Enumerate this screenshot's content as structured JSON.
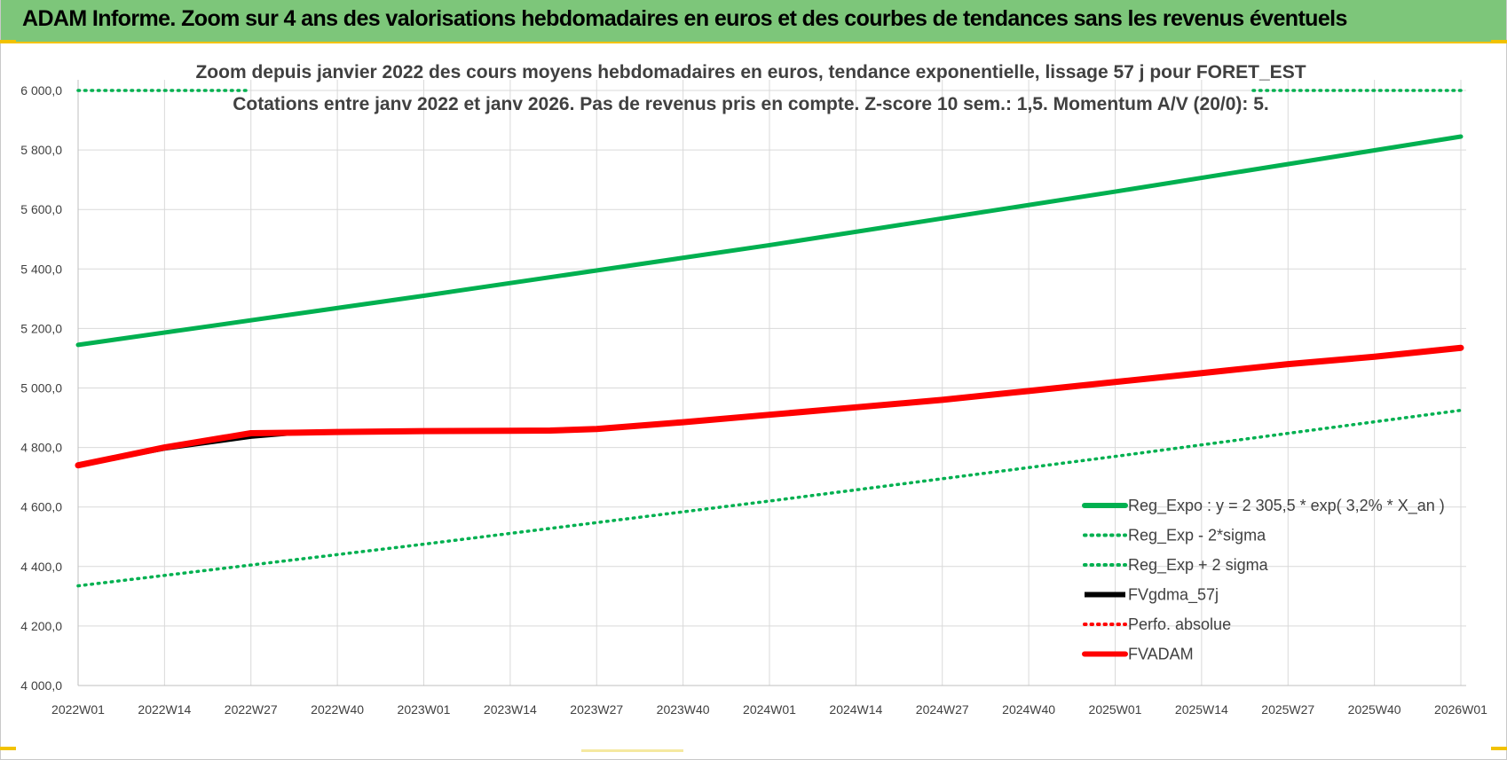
{
  "page": {
    "banner_title": "ADAM Informe. Zoom sur 4 ans des valorisations hebdomadaires en euros et des courbes de tendances sans les revenus éventuels",
    "banner_color": "#7dc67a",
    "accent_color": "#f2c200"
  },
  "chart_data": {
    "type": "line",
    "title": "Zoom depuis janvier 2022 des cours moyens hebdomadaires en euros, tendance exponentielle, lissage 57 j pour FORET_EST",
    "subtitle": "Cotations entre janv 2022 et janv 2026. Pas de revenus pris en compte. Z-score 10 sem.: 1,5. Momentum A/V (20/0): 5.",
    "xlabel": "",
    "ylabel": "",
    "ylim": [
      4000,
      6000
    ],
    "y_ticks": [
      "4 000,0",
      "4 200,0",
      "4 400,0",
      "4 600,0",
      "4 800,0",
      "5 000,0",
      "5 200,0",
      "5 400,0",
      "5 600,0",
      "5 800,0",
      "6 000,0"
    ],
    "x_ticks": [
      "2022W01",
      "2022W14",
      "2022W27",
      "2022W40",
      "2023W01",
      "2023W14",
      "2023W27",
      "2023W40",
      "2024W01",
      "2024W14",
      "2024W27",
      "2024W40",
      "2025W01",
      "2025W14",
      "2025W27",
      "2025W40",
      "2026W01"
    ],
    "grid": true,
    "legend_position": "bottom-right",
    "series": [
      {
        "name": "Reg_Expo : y = 2 305,5 * exp( 3,2% *  X_an )",
        "color": "#00b050",
        "style": "solid-thick",
        "points": [
          [
            "2022W01",
            5145
          ],
          [
            "2023W01",
            5310
          ],
          [
            "2024W01",
            5480
          ],
          [
            "2025W01",
            5660
          ],
          [
            "2026W01",
            5845
          ]
        ]
      },
      {
        "name": "Reg_Exp - 2*sigma",
        "color": "#00b050",
        "style": "dotted",
        "points": [
          [
            "2022W01",
            4335
          ],
          [
            "2023W01",
            4475
          ],
          [
            "2024W01",
            4620
          ],
          [
            "2025W01",
            4770
          ],
          [
            "2026W01",
            4925
          ]
        ]
      },
      {
        "name": "Reg_Exp + 2 sigma",
        "color": "#00b050",
        "style": "dotted",
        "points": [
          [
            "2022W01",
            6000
          ],
          [
            "2026W01",
            6000
          ]
        ]
      },
      {
        "name": "FVgdma_57j",
        "color": "#000000",
        "style": "solid",
        "points": [
          [
            "2022W01",
            4740
          ],
          [
            "2022W14",
            4795
          ],
          [
            "2022W27",
            4835
          ],
          [
            "2022W34",
            4848
          ],
          [
            "2022W40",
            4852
          ],
          [
            "2023W01",
            4855
          ],
          [
            "2023W14",
            4857
          ],
          [
            "2023W20",
            4858
          ],
          [
            "2023W27",
            4865
          ],
          [
            "2023W40",
            4885
          ],
          [
            "2024W01",
            4910
          ],
          [
            "2024W14",
            4935
          ],
          [
            "2024W27",
            4960
          ],
          [
            "2024W40",
            4990
          ],
          [
            "2025W01",
            5020
          ],
          [
            "2025W14",
            5050
          ],
          [
            "2025W27",
            5080
          ],
          [
            "2025W40",
            5105
          ],
          [
            "2026W01",
            5135
          ]
        ]
      },
      {
        "name": "Perfo. absolue",
        "color": "#ff0000",
        "style": "dotted",
        "points": []
      },
      {
        "name": "FVADAM",
        "color": "#ff0000",
        "style": "solid-thick",
        "points": [
          [
            "2022W01",
            4740
          ],
          [
            "2022W14",
            4800
          ],
          [
            "2022W27",
            4848
          ],
          [
            "2022W34",
            4850
          ],
          [
            "2022W40",
            4852
          ],
          [
            "2023W01",
            4855
          ],
          [
            "2023W14",
            4856
          ],
          [
            "2023W20",
            4857
          ],
          [
            "2023W27",
            4862
          ],
          [
            "2023W40",
            4885
          ],
          [
            "2024W01",
            4910
          ],
          [
            "2024W14",
            4935
          ],
          [
            "2024W27",
            4960
          ],
          [
            "2024W40",
            4990
          ],
          [
            "2025W01",
            5020
          ],
          [
            "2025W14",
            5050
          ],
          [
            "2025W27",
            5080
          ],
          [
            "2025W40",
            5105
          ],
          [
            "2026W01",
            5135
          ]
        ]
      }
    ]
  }
}
